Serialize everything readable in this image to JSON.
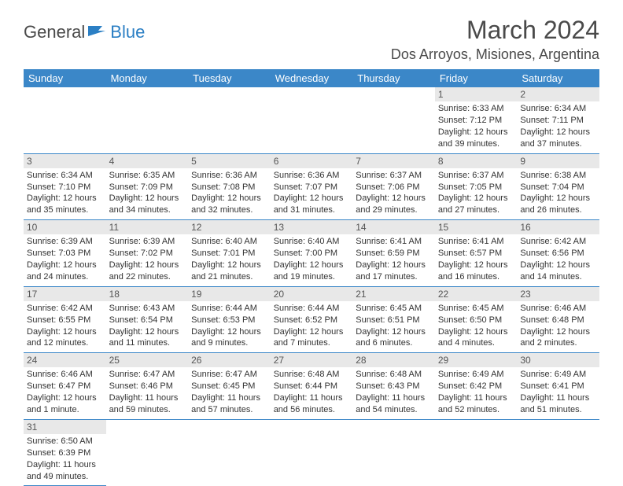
{
  "logo": {
    "text1": "General",
    "text2": "Blue"
  },
  "title": "March 2024",
  "location": "Dos Arroyos, Misiones, Argentina",
  "weekdays": [
    "Sunday",
    "Monday",
    "Tuesday",
    "Wednesday",
    "Thursday",
    "Friday",
    "Saturday"
  ],
  "colors": {
    "header_bg": "#3b87c8",
    "header_fg": "#ffffff",
    "daynum_bg": "#e8e8e8",
    "border": "#3b87c8"
  },
  "weeks": [
    [
      null,
      null,
      null,
      null,
      null,
      {
        "n": "1",
        "sr": "6:33 AM",
        "ss": "7:12 PM",
        "dl": "12 hours and 39 minutes."
      },
      {
        "n": "2",
        "sr": "6:34 AM",
        "ss": "7:11 PM",
        "dl": "12 hours and 37 minutes."
      }
    ],
    [
      {
        "n": "3",
        "sr": "6:34 AM",
        "ss": "7:10 PM",
        "dl": "12 hours and 35 minutes."
      },
      {
        "n": "4",
        "sr": "6:35 AM",
        "ss": "7:09 PM",
        "dl": "12 hours and 34 minutes."
      },
      {
        "n": "5",
        "sr": "6:36 AM",
        "ss": "7:08 PM",
        "dl": "12 hours and 32 minutes."
      },
      {
        "n": "6",
        "sr": "6:36 AM",
        "ss": "7:07 PM",
        "dl": "12 hours and 31 minutes."
      },
      {
        "n": "7",
        "sr": "6:37 AM",
        "ss": "7:06 PM",
        "dl": "12 hours and 29 minutes."
      },
      {
        "n": "8",
        "sr": "6:37 AM",
        "ss": "7:05 PM",
        "dl": "12 hours and 27 minutes."
      },
      {
        "n": "9",
        "sr": "6:38 AM",
        "ss": "7:04 PM",
        "dl": "12 hours and 26 minutes."
      }
    ],
    [
      {
        "n": "10",
        "sr": "6:39 AM",
        "ss": "7:03 PM",
        "dl": "12 hours and 24 minutes."
      },
      {
        "n": "11",
        "sr": "6:39 AM",
        "ss": "7:02 PM",
        "dl": "12 hours and 22 minutes."
      },
      {
        "n": "12",
        "sr": "6:40 AM",
        "ss": "7:01 PM",
        "dl": "12 hours and 21 minutes."
      },
      {
        "n": "13",
        "sr": "6:40 AM",
        "ss": "7:00 PM",
        "dl": "12 hours and 19 minutes."
      },
      {
        "n": "14",
        "sr": "6:41 AM",
        "ss": "6:59 PM",
        "dl": "12 hours and 17 minutes."
      },
      {
        "n": "15",
        "sr": "6:41 AM",
        "ss": "6:57 PM",
        "dl": "12 hours and 16 minutes."
      },
      {
        "n": "16",
        "sr": "6:42 AM",
        "ss": "6:56 PM",
        "dl": "12 hours and 14 minutes."
      }
    ],
    [
      {
        "n": "17",
        "sr": "6:42 AM",
        "ss": "6:55 PM",
        "dl": "12 hours and 12 minutes."
      },
      {
        "n": "18",
        "sr": "6:43 AM",
        "ss": "6:54 PM",
        "dl": "12 hours and 11 minutes."
      },
      {
        "n": "19",
        "sr": "6:44 AM",
        "ss": "6:53 PM",
        "dl": "12 hours and 9 minutes."
      },
      {
        "n": "20",
        "sr": "6:44 AM",
        "ss": "6:52 PM",
        "dl": "12 hours and 7 minutes."
      },
      {
        "n": "21",
        "sr": "6:45 AM",
        "ss": "6:51 PM",
        "dl": "12 hours and 6 minutes."
      },
      {
        "n": "22",
        "sr": "6:45 AM",
        "ss": "6:50 PM",
        "dl": "12 hours and 4 minutes."
      },
      {
        "n": "23",
        "sr": "6:46 AM",
        "ss": "6:48 PM",
        "dl": "12 hours and 2 minutes."
      }
    ],
    [
      {
        "n": "24",
        "sr": "6:46 AM",
        "ss": "6:47 PM",
        "dl": "12 hours and 1 minute."
      },
      {
        "n": "25",
        "sr": "6:47 AM",
        "ss": "6:46 PM",
        "dl": "11 hours and 59 minutes."
      },
      {
        "n": "26",
        "sr": "6:47 AM",
        "ss": "6:45 PM",
        "dl": "11 hours and 57 minutes."
      },
      {
        "n": "27",
        "sr": "6:48 AM",
        "ss": "6:44 PM",
        "dl": "11 hours and 56 minutes."
      },
      {
        "n": "28",
        "sr": "6:48 AM",
        "ss": "6:43 PM",
        "dl": "11 hours and 54 minutes."
      },
      {
        "n": "29",
        "sr": "6:49 AM",
        "ss": "6:42 PM",
        "dl": "11 hours and 52 minutes."
      },
      {
        "n": "30",
        "sr": "6:49 AM",
        "ss": "6:41 PM",
        "dl": "11 hours and 51 minutes."
      }
    ],
    [
      {
        "n": "31",
        "sr": "6:50 AM",
        "ss": "6:39 PM",
        "dl": "11 hours and 49 minutes."
      },
      null,
      null,
      null,
      null,
      null,
      null
    ]
  ],
  "labels": {
    "sunrise": "Sunrise: ",
    "sunset": "Sunset: ",
    "daylight": "Daylight: "
  }
}
